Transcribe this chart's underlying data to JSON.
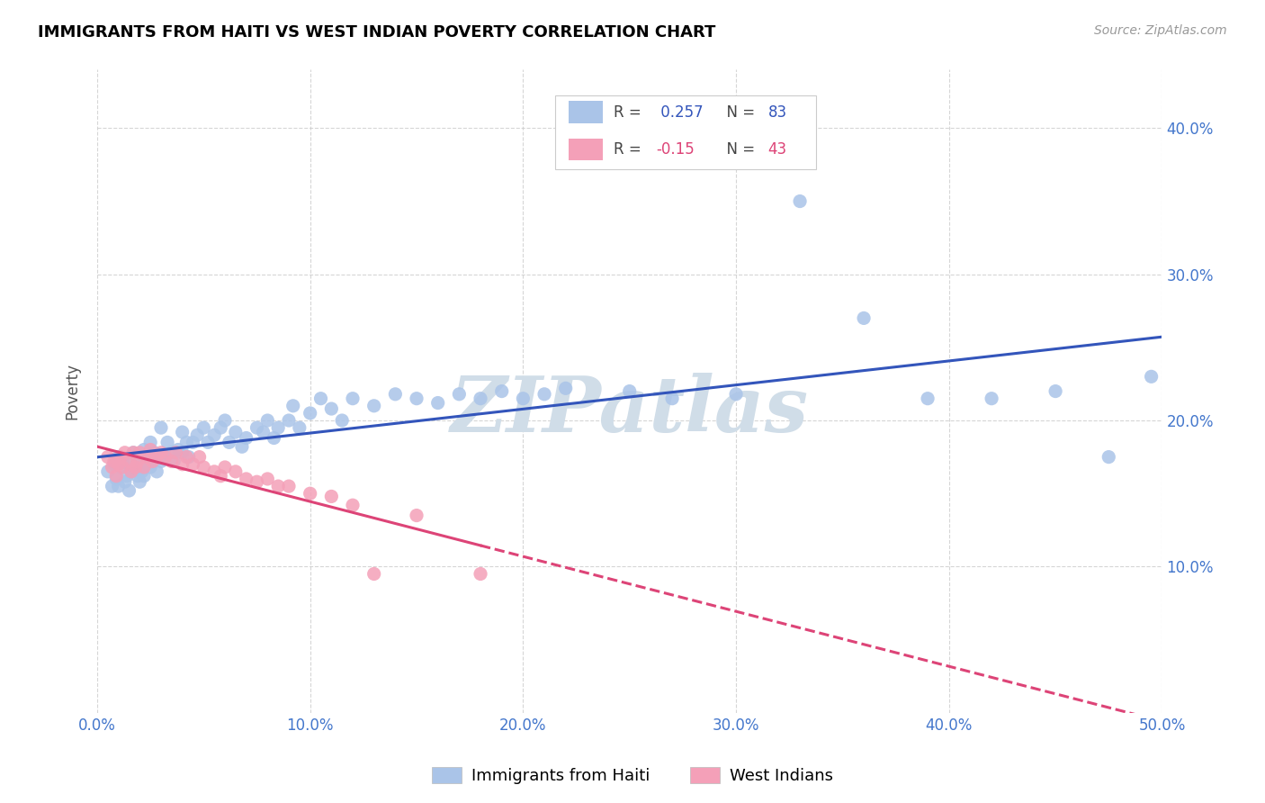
{
  "title": "IMMIGRANTS FROM HAITI VS WEST INDIAN POVERTY CORRELATION CHART",
  "source": "Source: ZipAtlas.com",
  "ylabel": "Poverty",
  "xlim": [
    0.0,
    0.5
  ],
  "ylim": [
    0.0,
    0.44
  ],
  "xticks": [
    0.0,
    0.1,
    0.2,
    0.3,
    0.4,
    0.5
  ],
  "yticks": [
    0.1,
    0.2,
    0.3,
    0.4
  ],
  "haiti_color": "#aac4e8",
  "west_indian_color": "#f4a0b8",
  "haiti_line_color": "#3355bb",
  "west_indian_line_color": "#dd4477",
  "haiti_R": 0.257,
  "haiti_N": 83,
  "west_indian_R": -0.15,
  "west_indian_N": 43,
  "tick_color": "#4477cc",
  "grid_color": "#cccccc",
  "watermark_color": "#d0dde8",
  "legend_items": [
    {
      "label": "Immigrants from Haiti",
      "color": "#aac4e8"
    },
    {
      "label": "West Indians",
      "color": "#f4a0b8"
    }
  ],
  "haiti_x": [
    0.005,
    0.007,
    0.008,
    0.009,
    0.01,
    0.01,
    0.011,
    0.012,
    0.013,
    0.014,
    0.015,
    0.015,
    0.016,
    0.017,
    0.018,
    0.019,
    0.02,
    0.02,
    0.021,
    0.022,
    0.022,
    0.023,
    0.024,
    0.025,
    0.025,
    0.026,
    0.027,
    0.028,
    0.03,
    0.03,
    0.032,
    0.033,
    0.035,
    0.036,
    0.038,
    0.04,
    0.04,
    0.042,
    0.043,
    0.045,
    0.047,
    0.05,
    0.052,
    0.055,
    0.058,
    0.06,
    0.062,
    0.065,
    0.068,
    0.07,
    0.075,
    0.078,
    0.08,
    0.083,
    0.085,
    0.09,
    0.092,
    0.095,
    0.1,
    0.105,
    0.11,
    0.115,
    0.12,
    0.13,
    0.14,
    0.15,
    0.16,
    0.17,
    0.18,
    0.19,
    0.2,
    0.21,
    0.22,
    0.25,
    0.27,
    0.3,
    0.33,
    0.36,
    0.39,
    0.42,
    0.45,
    0.475,
    0.495
  ],
  "haiti_y": [
    0.165,
    0.155,
    0.17,
    0.16,
    0.175,
    0.155,
    0.168,
    0.172,
    0.158,
    0.162,
    0.17,
    0.152,
    0.165,
    0.178,
    0.168,
    0.162,
    0.175,
    0.158,
    0.165,
    0.18,
    0.162,
    0.17,
    0.175,
    0.185,
    0.168,
    0.172,
    0.178,
    0.165,
    0.195,
    0.172,
    0.175,
    0.185,
    0.178,
    0.172,
    0.18,
    0.192,
    0.178,
    0.185,
    0.175,
    0.185,
    0.19,
    0.195,
    0.185,
    0.19,
    0.195,
    0.2,
    0.185,
    0.192,
    0.182,
    0.188,
    0.195,
    0.192,
    0.2,
    0.188,
    0.195,
    0.2,
    0.21,
    0.195,
    0.205,
    0.215,
    0.208,
    0.2,
    0.215,
    0.21,
    0.218,
    0.215,
    0.212,
    0.218,
    0.215,
    0.22,
    0.215,
    0.218,
    0.222,
    0.22,
    0.215,
    0.218,
    0.35,
    0.27,
    0.215,
    0.215,
    0.22,
    0.175,
    0.23
  ],
  "west_indian_x": [
    0.005,
    0.007,
    0.008,
    0.009,
    0.01,
    0.011,
    0.012,
    0.013,
    0.015,
    0.016,
    0.017,
    0.018,
    0.019,
    0.02,
    0.022,
    0.023,
    0.025,
    0.026,
    0.028,
    0.03,
    0.032,
    0.035,
    0.037,
    0.04,
    0.042,
    0.045,
    0.048,
    0.05,
    0.055,
    0.058,
    0.06,
    0.065,
    0.07,
    0.075,
    0.08,
    0.085,
    0.09,
    0.1,
    0.11,
    0.12,
    0.13,
    0.15,
    0.18
  ],
  "west_indian_y": [
    0.175,
    0.168,
    0.172,
    0.162,
    0.17,
    0.175,
    0.168,
    0.178,
    0.172,
    0.165,
    0.178,
    0.168,
    0.172,
    0.178,
    0.168,
    0.175,
    0.18,
    0.172,
    0.175,
    0.178,
    0.175,
    0.172,
    0.178,
    0.17,
    0.175,
    0.17,
    0.175,
    0.168,
    0.165,
    0.162,
    0.168,
    0.165,
    0.16,
    0.158,
    0.16,
    0.155,
    0.155,
    0.15,
    0.148,
    0.142,
    0.095,
    0.135,
    0.095
  ]
}
